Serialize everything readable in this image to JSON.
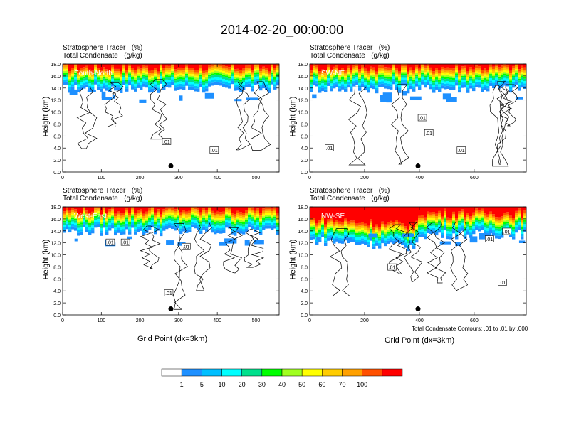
{
  "title": "2014-02-20_00:00:00",
  "note": "Total Condensate Contours: .01 to .01 by .000",
  "colorbar": {
    "colors": [
      "#ffffff",
      "#1e90ff",
      "#00bfff",
      "#00ffff",
      "#00e08c",
      "#00ff00",
      "#a0ff20",
      "#ffff00",
      "#ffcc00",
      "#ffa000",
      "#ff5000",
      "#ff0000"
    ],
    "labels": [
      "1",
      "5",
      "10",
      "20",
      "30",
      "40",
      "50",
      "60",
      "70",
      "100"
    ]
  },
  "chart_data": [
    {
      "type": "heatmap",
      "panel": "South-North",
      "subtitle_left": "Stratosphere Tracer",
      "subtitle_right": "(%)",
      "subtitle2_left": "Total Condensate",
      "subtitle2_right": "(g/kg)",
      "ylabel": "Height (km)",
      "xlabel": "",
      "xlim": [
        0,
        560
      ],
      "ylim": [
        0,
        18
      ],
      "xticks": [
        "0",
        "100",
        "200",
        "300",
        "400",
        "500"
      ],
      "yticks": [
        "0.0",
        "2.0",
        "4.0",
        "6.0",
        "8.0",
        "10.0",
        "12.0",
        "14.0",
        "16.0",
        "18.0"
      ],
      "contour_labels": [
        ".01",
        ".01"
      ],
      "marker_x": 280
    },
    {
      "type": "heatmap",
      "panel": "SW-NE",
      "subtitle_left": "Stratosphere Tracer",
      "subtitle_right": "(%)",
      "subtitle2_left": "Total Condensate",
      "subtitle2_right": "(g/kg)",
      "ylabel": "Height (km)",
      "xlabel": "",
      "xlim": [
        0,
        790
      ],
      "ylim": [
        0,
        18
      ],
      "xticks": [
        "0",
        "200",
        "400",
        "600"
      ],
      "yticks": [
        "0.0",
        "2.0",
        "4.0",
        "6.0",
        "8.0",
        "10.0",
        "12.0",
        "14.0",
        "16.0",
        "18.0"
      ],
      "contour_labels": [
        ".01",
        ".01",
        ".01",
        ".01"
      ],
      "marker_x": 395
    },
    {
      "type": "heatmap",
      "panel": "West-East",
      "subtitle_left": "Stratosphere Tracer",
      "subtitle_right": "(%)",
      "subtitle2_left": "Total Condensate",
      "subtitle2_right": "(g/kg)",
      "ylabel": "Height (km)",
      "xlabel": "Grid Point (dx=3km)",
      "xlim": [
        0,
        560
      ],
      "ylim": [
        0,
        18
      ],
      "xticks": [
        "0",
        "100",
        "200",
        "300",
        "400",
        "500"
      ],
      "yticks": [
        "0.0",
        "2.0",
        "4.0",
        "6.0",
        "8.0",
        "10.0",
        "12.0",
        "14.0",
        "16.0",
        "18.0"
      ],
      "contour_labels": [
        ".01",
        ".01",
        ".01",
        ".01"
      ],
      "marker_x": 280
    },
    {
      "type": "heatmap",
      "panel": "NW-SE",
      "subtitle_left": "Stratosphere Tracer",
      "subtitle_right": "(%)",
      "subtitle2_left": "Total Condensate",
      "subtitle2_right": "(g/kg)",
      "ylabel": "Height (km)",
      "xlabel": "Grid Point (dx=3km)",
      "xlim": [
        0,
        790
      ],
      "ylim": [
        0,
        18
      ],
      "xticks": [
        "0",
        "200",
        "400",
        "600"
      ],
      "yticks": [
        "0.0",
        "2.0",
        "4.0",
        "6.0",
        "8.0",
        "10.0",
        "12.0",
        "14.0",
        "16.0",
        "18.0"
      ],
      "contour_labels": [
        ".01",
        ".01",
        ".01",
        ".01"
      ],
      "marker_x": 395
    }
  ]
}
